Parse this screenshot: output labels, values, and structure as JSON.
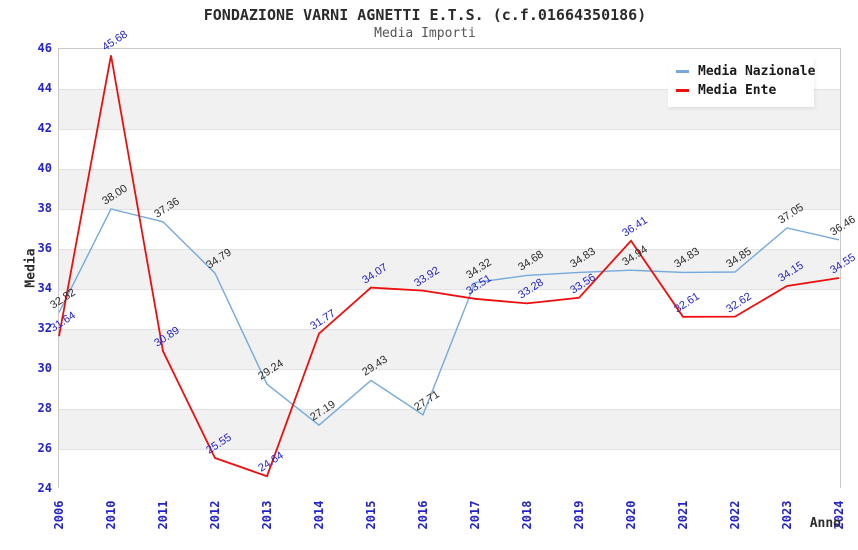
{
  "header": {
    "title": "FONDAZIONE VARNI AGNETTI E.T.S. (c.f.01664350186)",
    "subtitle": "Media Importi"
  },
  "chart_data": {
    "type": "line",
    "title": "FONDAZIONE VARNI AGNETTI E.T.S. (c.f.01664350186)",
    "subtitle": "Media Importi",
    "xlabel": "Anno",
    "ylabel": "Media",
    "categories": [
      "2006",
      "2010",
      "2011",
      "2012",
      "2013",
      "2014",
      "2015",
      "2016",
      "2017",
      "2018",
      "2019",
      "2020",
      "2021",
      "2022",
      "2023",
      "2024"
    ],
    "series": [
      {
        "name": "Media Nazionale",
        "color": "#76aadc",
        "label_color": "#2b2b2b",
        "values": [
          32.82,
          38.0,
          37.36,
          34.79,
          29.24,
          27.19,
          29.43,
          27.71,
          34.32,
          34.68,
          34.83,
          34.94,
          34.83,
          34.85,
          37.05,
          36.46
        ]
      },
      {
        "name": "Media Ente",
        "color": "#ee0e0e",
        "label_color": "#2323ce",
        "values": [
          31.64,
          45.68,
          30.89,
          25.55,
          24.64,
          31.77,
          34.07,
          33.92,
          33.51,
          33.28,
          33.56,
          36.41,
          32.61,
          32.62,
          34.15,
          34.55
        ]
      }
    ],
    "ylim": [
      24,
      46
    ],
    "ytick_step": 2,
    "grid": "horizontal-bands",
    "band_colors": [
      "#ffffff",
      "#f1f1f1"
    ],
    "tick_color": "#2323ce",
    "legend_position": "top-right"
  }
}
